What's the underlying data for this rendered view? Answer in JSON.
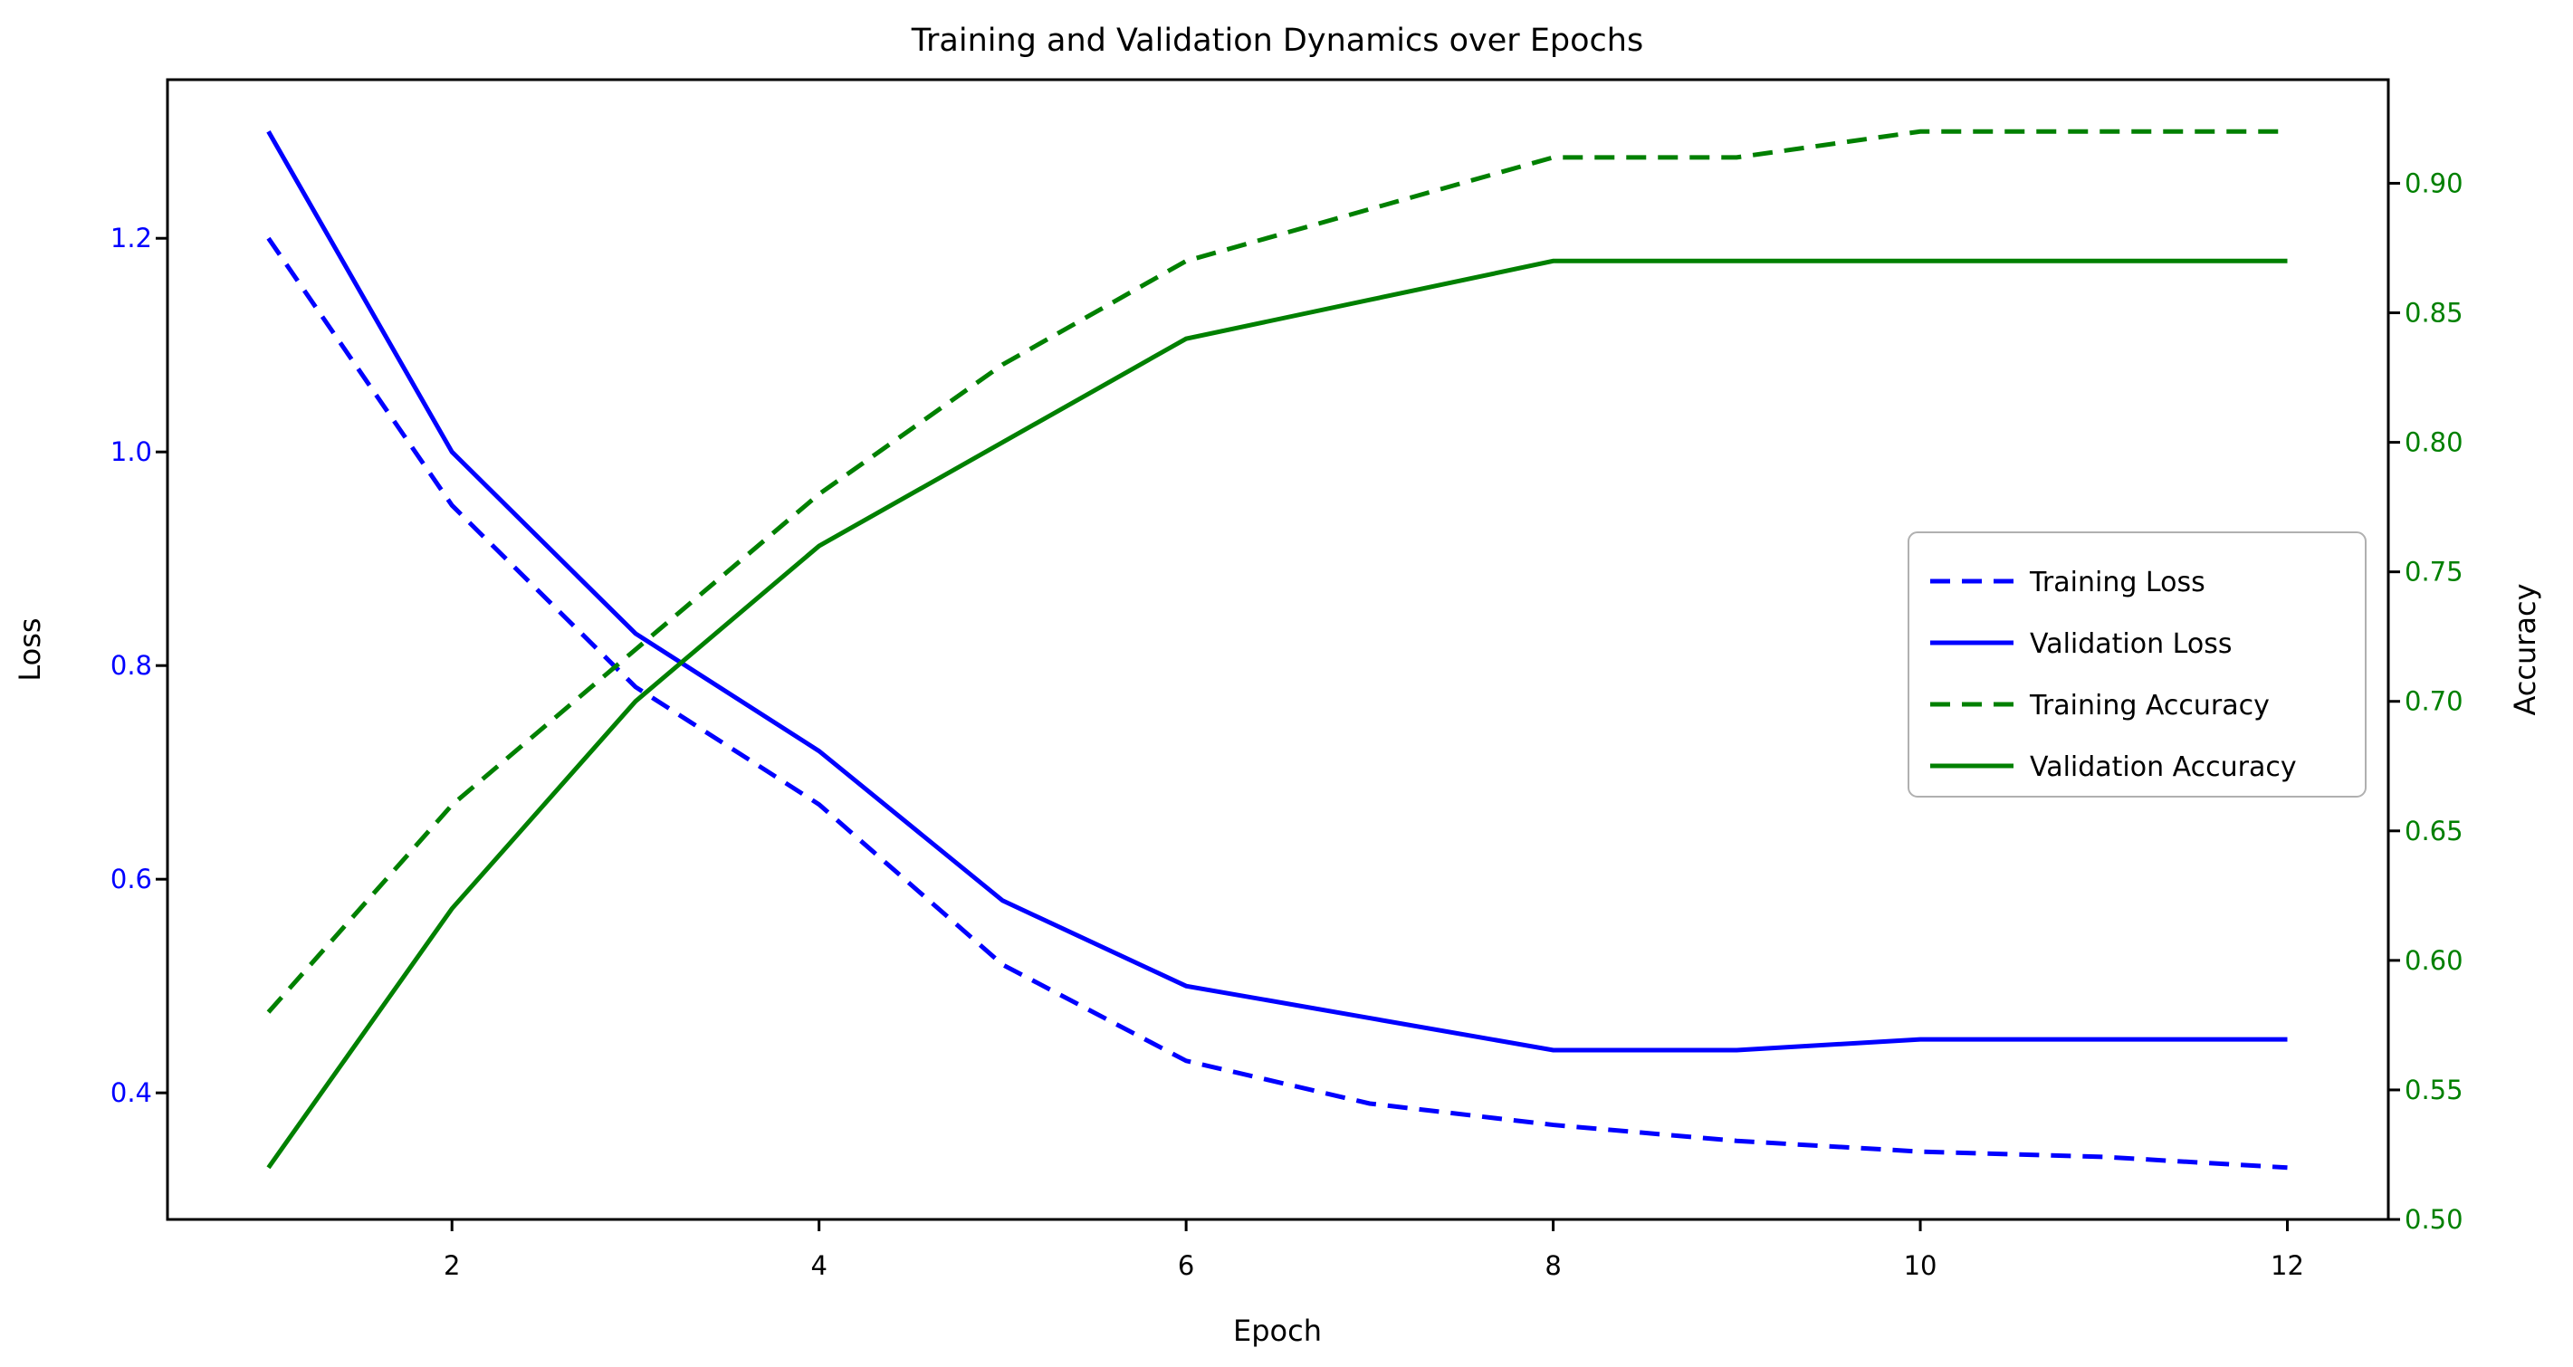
{
  "chart_data": {
    "type": "line",
    "title": "Training and Validation Dynamics over Epochs",
    "xlabel": "Epoch",
    "x": [
      1,
      2,
      3,
      4,
      5,
      6,
      7,
      8,
      9,
      10,
      11,
      12
    ],
    "xlim": [
      0.45,
      12.55
    ],
    "xticks": [
      {
        "v": 2,
        "label": "2"
      },
      {
        "v": 4,
        "label": "4"
      },
      {
        "v": 6,
        "label": "6"
      },
      {
        "v": 8,
        "label": "8"
      },
      {
        "v": 10,
        "label": "10"
      },
      {
        "v": 12,
        "label": "12"
      }
    ],
    "y_left": {
      "label": "Loss",
      "color": "#0000ff",
      "lim": [
        0.2815,
        1.3485
      ],
      "ticks": [
        {
          "v": 0.4,
          "label": "0.4"
        },
        {
          "v": 0.6,
          "label": "0.6"
        },
        {
          "v": 0.8,
          "label": "0.8"
        },
        {
          "v": 1.0,
          "label": "1.0"
        },
        {
          "v": 1.2,
          "label": "1.2"
        }
      ]
    },
    "y_right": {
      "label": "Accuracy",
      "color": "#008000",
      "lim": [
        0.5,
        0.94
      ],
      "ticks": [
        {
          "v": 0.5,
          "label": "0.50"
        },
        {
          "v": 0.55,
          "label": "0.55"
        },
        {
          "v": 0.6,
          "label": "0.60"
        },
        {
          "v": 0.65,
          "label": "0.65"
        },
        {
          "v": 0.7,
          "label": "0.70"
        },
        {
          "v": 0.75,
          "label": "0.75"
        },
        {
          "v": 0.8,
          "label": "0.80"
        },
        {
          "v": 0.85,
          "label": "0.85"
        },
        {
          "v": 0.9,
          "label": "0.90"
        }
      ]
    },
    "series": [
      {
        "name": "Training Loss",
        "axis": "left",
        "color": "#0000ff",
        "style": "dashed",
        "values": [
          1.2,
          0.95,
          0.78,
          0.67,
          0.52,
          0.43,
          0.39,
          0.37,
          0.355,
          0.345,
          0.34,
          0.33
        ]
      },
      {
        "name": "Validation Loss",
        "axis": "left",
        "color": "#0000ff",
        "style": "solid",
        "values": [
          1.3,
          1.0,
          0.83,
          0.72,
          0.58,
          0.5,
          0.47,
          0.44,
          0.44,
          0.45,
          0.45,
          0.45
        ]
      },
      {
        "name": "Training Accuracy",
        "axis": "right",
        "color": "#008000",
        "style": "dashed",
        "values": [
          0.58,
          0.66,
          0.72,
          0.78,
          0.83,
          0.87,
          0.89,
          0.91,
          0.91,
          0.92,
          0.92,
          0.92
        ]
      },
      {
        "name": "Validation Accuracy",
        "axis": "right",
        "color": "#008000",
        "style": "solid",
        "values": [
          0.52,
          0.62,
          0.7,
          0.76,
          0.8,
          0.84,
          0.855,
          0.87,
          0.87,
          0.87,
          0.87,
          0.87
        ]
      }
    ],
    "legend": {
      "position": "center right",
      "labels": [
        "Training Loss",
        "Validation Loss",
        "Training Accuracy",
        "Validation Accuracy"
      ]
    },
    "grid": false
  }
}
